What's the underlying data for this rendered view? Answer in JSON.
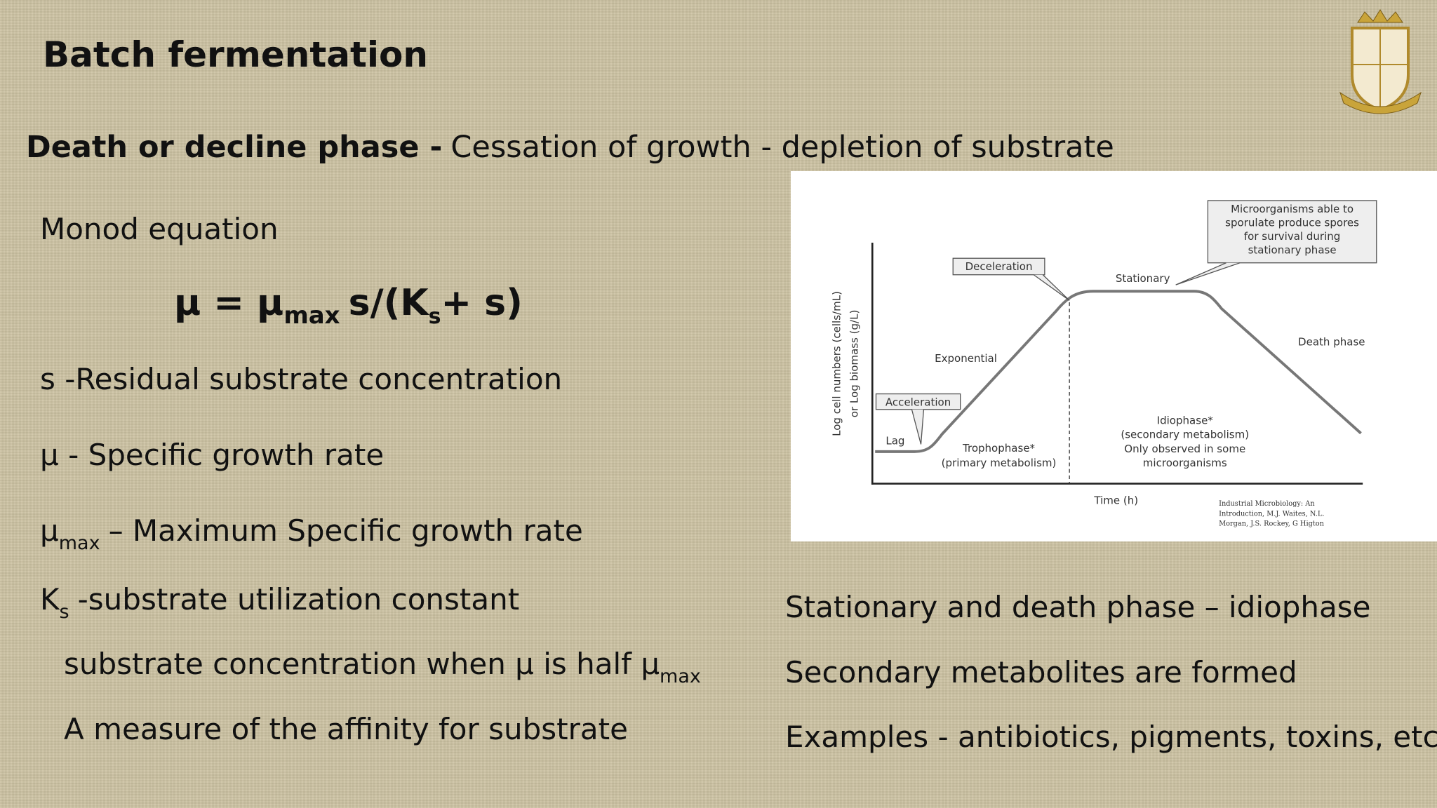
{
  "header": {
    "title": "Batch fermentation"
  },
  "subtitle": {
    "label": "Death or decline phase -",
    "text": "Cessation of growth - depletion of substrate"
  },
  "monod": {
    "heading": "Monod equation",
    "equation": {
      "lhs": "μ = μ",
      "lhs_sub": "max",
      "mid": "s/(K",
      "mid_sub": "s",
      "rhs": "+ s)"
    },
    "definitions": [
      {
        "text": "s -Residual substrate concentration"
      },
      {
        "text": "μ - Specific growth rate"
      },
      {
        "symbol": "μ",
        "sub": "max",
        "text": "– Maximum Specific growth rate"
      },
      {
        "symbol": "K",
        "sub": "s",
        "text": "-substrate utilization constant"
      }
    ],
    "notes": [
      {
        "text": "substrate concentration when μ is half μ",
        "sub": "max"
      },
      {
        "text": "A measure of the affinity for substrate"
      }
    ]
  },
  "figure": {
    "callout_sporulate": [
      "Microorganisms able to",
      "sporulate produce spores",
      "for survival during",
      "stationary phase"
    ],
    "deceleration": "Deceleration",
    "stationary": "Stationary",
    "exponential": "Exponential",
    "death_phase": "Death phase",
    "acceleration": "Acceleration",
    "lag": "Lag",
    "trophophase": [
      "Trophophase*",
      "(primary metabolism)"
    ],
    "idiophase": [
      "Idiophase*",
      "(secondary metabolism)",
      "Only observed in some",
      "microorganisms"
    ],
    "y_axis_label": [
      "Log cell numbers (cells/mL)",
      "or Log biomass (g/L)"
    ],
    "x_axis_label": "Time (h)",
    "citation": [
      "Industrial Microbiology: An",
      "Introduction, M.J. Waites, N.L.",
      "Morgan, J.S. Rockey, G Higton"
    ]
  },
  "right": {
    "lines": [
      "Stationary and death phase – idiophase",
      "Secondary metabolites are formed",
      "Examples - antibiotics, pigments, toxins, etc"
    ]
  }
}
